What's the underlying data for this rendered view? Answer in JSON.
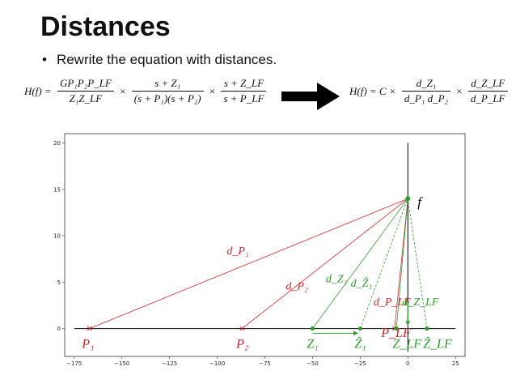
{
  "slide": {
    "title": "Distances",
    "bullet": "Rewrite the equation with distances."
  },
  "equation_left": {
    "lhs": "H(f) =",
    "f1_num": "GP₁P₂P_LF",
    "f1_den": "Z₁Z_LF",
    "f2_num": "s + Z₁",
    "f2_den": "(s + P₁)(s + P₂)",
    "f3_num": "s + Z_LF",
    "f3_den": "s + P_LF",
    "times": "×"
  },
  "equation_right": {
    "lhs": "H(f) = C ×",
    "f1_num": "d_Z₁",
    "f1_den": "d_P₁ d_P₂",
    "f2_num": "d_Z_LF",
    "f2_den": "d_P_LF",
    "times": "×"
  },
  "arrow": {
    "icon": "right-arrow-icon",
    "color": "#000000"
  },
  "chart_data": {
    "type": "scatter",
    "xlim": [
      -180,
      30
    ],
    "ylim": [
      -3,
      21
    ],
    "xticks": [
      -175,
      -150,
      -125,
      -100,
      -75,
      -50,
      -25,
      0,
      25
    ],
    "yticks": [
      0,
      5,
      10,
      15,
      20
    ],
    "f_point": {
      "x": 0,
      "y": 14,
      "label": "f"
    },
    "poles": [
      {
        "name": "P1",
        "label": "P₁",
        "x": -167,
        "y": 0,
        "color": "#d62728"
      },
      {
        "name": "P2",
        "label": "P₂",
        "x": -87,
        "y": 0,
        "color": "#d62728"
      },
      {
        "name": "PLF",
        "label": "P_LF",
        "x": -7,
        "y": 0,
        "color": "#d62728"
      }
    ],
    "zeros": [
      {
        "name": "Z1",
        "label": "Z₁",
        "x": -50,
        "y": 0,
        "color": "#2ca02c"
      },
      {
        "name": "Z1hat",
        "label": "Ẑ₁",
        "x": -25,
        "y": 0,
        "color": "#2ca02c"
      },
      {
        "name": "ZLF",
        "label": "Z_LF",
        "x": -6,
        "y": 0,
        "color": "#2ca02c"
      },
      {
        "name": "ZLFhat",
        "label": "Ẑ_LF",
        "x": 10,
        "y": 0,
        "color": "#2ca02c"
      }
    ],
    "distance_labels": [
      {
        "text": "d_P₁",
        "x": -95,
        "y": 8,
        "color": "#d62728"
      },
      {
        "text": "d_P₂",
        "x": -64,
        "y": 4.2,
        "color": "#d62728"
      },
      {
        "text": "d_Z₁",
        "x": -43,
        "y": 5,
        "color": "#2ca02c"
      },
      {
        "text": "d_Ẑ₁",
        "x": -30,
        "y": 4.5,
        "color": "#2ca02c"
      },
      {
        "text": "d_P_LF",
        "x": -18,
        "y": 2.5,
        "color": "#d62728"
      },
      {
        "text": "d_Z_LF",
        "x": -3,
        "y": 2.5,
        "color": "#2ca02c"
      }
    ],
    "shift_arrows": [
      {
        "from": -50,
        "to": -26,
        "y": -0.5,
        "color": "#2ca02c"
      },
      {
        "from": 0,
        "to": 0,
        "y_from": 3,
        "y_to": 0.3,
        "color": "#2ca02c"
      }
    ]
  }
}
